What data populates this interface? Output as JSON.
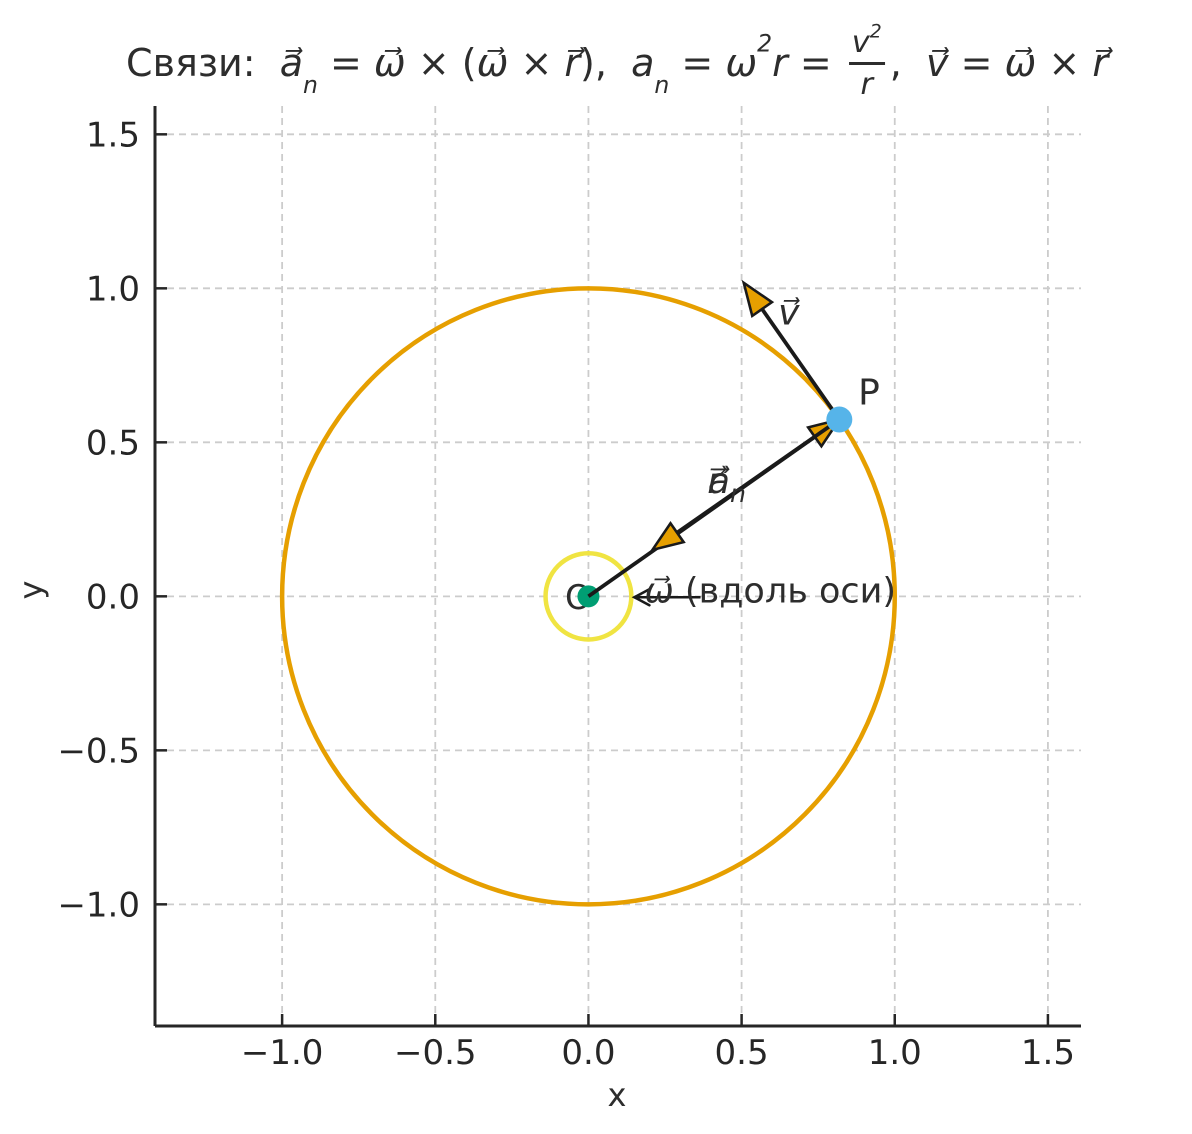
{
  "title": {
    "plain": "Связи:  a⃗ₙ = ω⃗ × (ω⃗ × r⃗),  aₙ = ω²r = v²/r,  v⃗ = ω⃗ × r⃗",
    "segments": [
      {
        "t": "Связи:  ",
        "s": "up"
      },
      {
        "t": "a⃗",
        "s": "it"
      },
      {
        "t": "n",
        "s": "sub"
      },
      {
        "t": " = ",
        "s": "up"
      },
      {
        "t": "ω⃗",
        "s": "it"
      },
      {
        "t": " × (",
        "s": "up"
      },
      {
        "t": "ω⃗",
        "s": "it"
      },
      {
        "t": " × ",
        "s": "up"
      },
      {
        "t": "r⃗",
        "s": "it"
      },
      {
        "t": "),  ",
        "s": "up"
      },
      {
        "t": "a",
        "s": "it"
      },
      {
        "t": "n",
        "s": "sub"
      },
      {
        "t": " = ",
        "s": "up"
      },
      {
        "t": "ω",
        "s": "it"
      },
      {
        "t": "2",
        "s": "sup"
      },
      {
        "t": "r",
        "s": "it"
      },
      {
        "t": " = ",
        "s": "up"
      },
      {
        "s": "frac",
        "num": "v",
        "numsup": "2",
        "den": "r"
      },
      {
        "t": ",  ",
        "s": "up"
      },
      {
        "t": "v⃗",
        "s": "it"
      },
      {
        "t": " = ",
        "s": "up"
      },
      {
        "t": "ω⃗",
        "s": "it"
      },
      {
        "t": " × ",
        "s": "up"
      },
      {
        "t": "r⃗",
        "s": "it"
      }
    ]
  },
  "chart_data": {
    "type": "scatter",
    "title": "Связи: a⃗ₙ = ω⃗ × (ω⃗ × r⃗), aₙ = ω²r = v²/r, v⃗ = ω⃗ × r⃗",
    "xlabel": "x",
    "ylabel": "y",
    "xlim": [
      -1.415,
      1.608
    ],
    "ylim": [
      -1.395,
      1.592
    ],
    "grid": {
      "on": true,
      "color": "#cccccc",
      "dash": "7 5",
      "width": 1.8
    },
    "axis": {
      "spine_color": "#262626",
      "spine_width": 3,
      "tick_len": 12,
      "tick_width": 2.5,
      "tick_font": 34,
      "tick_color": "#262626",
      "tick_direction": "in"
    },
    "xticks": {
      "values": [
        -1.0,
        -0.5,
        0.0,
        0.5,
        1.0,
        1.5
      ],
      "labels": [
        "−1.0",
        "−0.5",
        "0.0",
        "0.5",
        "1.0",
        "1.5"
      ]
    },
    "yticks": {
      "values": [
        -1.0,
        -0.5,
        0.0,
        0.5,
        1.0,
        1.5
      ],
      "labels": [
        "−1.0",
        "−0.5",
        "0.0",
        "0.5",
        "1.0",
        "1.5"
      ]
    },
    "colors": {
      "trajectory": "#E69F00",
      "omega_circle": "#F0E442",
      "origin_dot": "#009E73",
      "point_P": "#56B4E9",
      "arrow_shaft": "#1a1a1a",
      "arrow_head_fill": "#E69F00",
      "text": "#2d2d2d"
    },
    "circles": [
      {
        "name": "trajectory-circle",
        "cx": 0,
        "cy": 0,
        "r": 1.0,
        "stroke": "#E69F00",
        "width": 4.5
      },
      {
        "name": "omega-axis-circle",
        "cx": 0,
        "cy": 0,
        "r": 0.14,
        "stroke": "#F0E442",
        "width": 4.5
      }
    ],
    "points": [
      {
        "name": "origin-point",
        "x": 0,
        "y": 0,
        "color": "#009E73",
        "radius_px": 11,
        "above_arrows": false
      },
      {
        "name": "point-P",
        "x": 0.819,
        "y": 0.574,
        "color": "#56B4E9",
        "radius_px": 13,
        "above_arrows": true
      }
    ],
    "arrows": [
      {
        "name": "r-vector-arrow",
        "from": [
          0,
          0
        ],
        "to": [
          0.819,
          0.574
        ],
        "style": "filled",
        "shaft_w": 3.8,
        "head_l": 30,
        "head_w": 11.5
      },
      {
        "name": "an-vector-arrow",
        "from": [
          0.819,
          0.574
        ],
        "to": [
          0.209,
          0.151
        ],
        "style": "filled",
        "shaft_w": 3.8,
        "head_l": 30,
        "head_w": 11.5
      },
      {
        "name": "v-vector-arrow",
        "from": [
          0.819,
          0.574
        ],
        "to": [
          0.507,
          1.018
        ],
        "style": "filled",
        "shaft_w": 3.8,
        "head_l": 32,
        "head_w": 12
      },
      {
        "name": "omega-annotation-arrow",
        "from": [
          0.366,
          -0.003
        ],
        "to": [
          0.15,
          -0.003
        ],
        "style": "open",
        "shaft_w": 2.6,
        "head_l": 15,
        "head_w": 8
      }
    ],
    "labels": [
      {
        "name": "label-O",
        "text": "O",
        "x": -0.033,
        "y": -0.005,
        "italic": false,
        "size": 34,
        "anchor": "middle",
        "layer": "under"
      },
      {
        "name": "label-P",
        "text": "P",
        "x": 0.916,
        "y": 0.66,
        "italic": false,
        "size": 36,
        "anchor": "middle",
        "layer": "over"
      },
      {
        "name": "label-v",
        "text": "v⃗",
        "x": 0.654,
        "y": 0.92,
        "italic": true,
        "size": 36,
        "anchor": "middle",
        "layer": "over"
      },
      {
        "name": "label-r",
        "text": "r⃗",
        "x": 0.412,
        "y": 0.373,
        "italic": true,
        "size": 36,
        "anchor": "middle",
        "layer": "over"
      },
      {
        "name": "label-an",
        "text": "a⃗",
        "sub": "n",
        "x": 0.452,
        "y": 0.373,
        "italic": true,
        "size": 36,
        "anchor": "middle",
        "layer": "over"
      },
      {
        "name": "label-omega",
        "text": "ω⃗",
        "suffix": " (вдоль оси)",
        "x": 0.183,
        "y": 0.016,
        "italic": true,
        "size": 35,
        "anchor": "start",
        "layer": "over"
      }
    ]
  }
}
